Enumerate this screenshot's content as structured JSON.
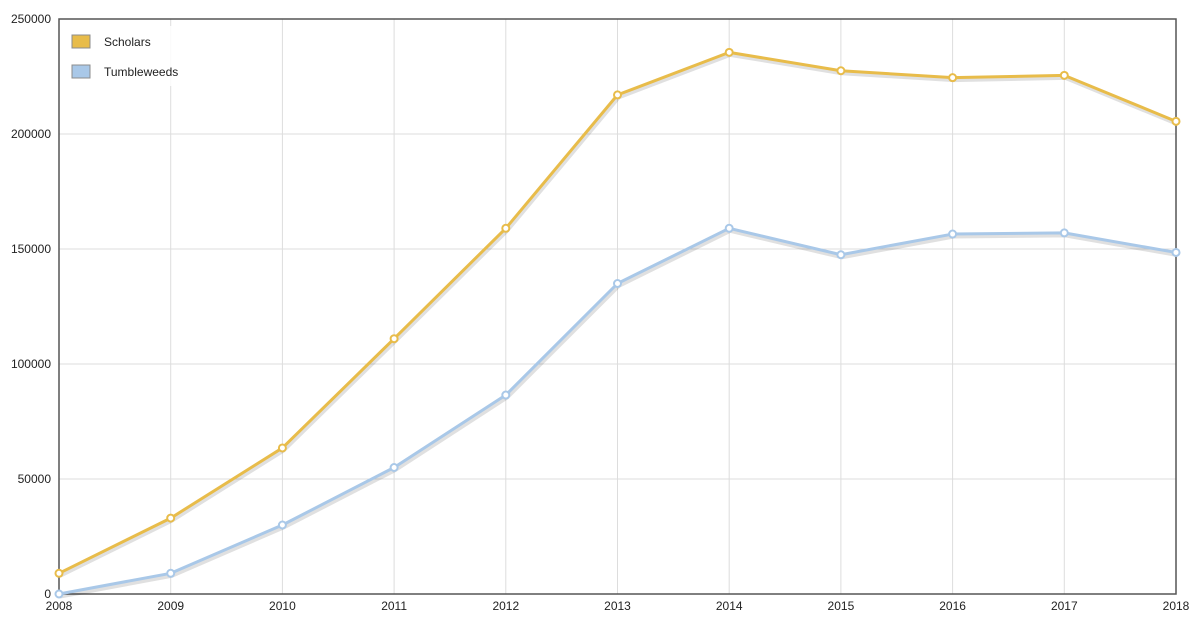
{
  "chart_data": {
    "type": "line",
    "title": "",
    "xlabel": "",
    "ylabel": "",
    "x": [
      2008,
      2009,
      2010,
      2011,
      2012,
      2013,
      2014,
      2015,
      2016,
      2017,
      2018
    ],
    "x_tick_labels": [
      "2008",
      "2009",
      "2010",
      "2011",
      "2012",
      "2013",
      "2014",
      "2015",
      "2016",
      "2017",
      "2018"
    ],
    "ylim": [
      0,
      250000
    ],
    "y_ticks": [
      0,
      50000,
      100000,
      150000,
      200000,
      250000
    ],
    "y_tick_labels": [
      "0",
      "50000",
      "100000",
      "150000",
      "200000",
      "250000"
    ],
    "grid": true,
    "legend_position": "top-left",
    "series": [
      {
        "name": "Scholars",
        "color": "#e8bc4a",
        "values": [
          9000,
          33000,
          63500,
          111000,
          159000,
          217000,
          235500,
          227500,
          224500,
          225500,
          205500
        ]
      },
      {
        "name": "Tumbleweeds",
        "color": "#a9c8e8",
        "values": [
          0,
          9000,
          30000,
          55000,
          86500,
          135000,
          159000,
          147500,
          156500,
          157000,
          148500
        ]
      }
    ]
  }
}
